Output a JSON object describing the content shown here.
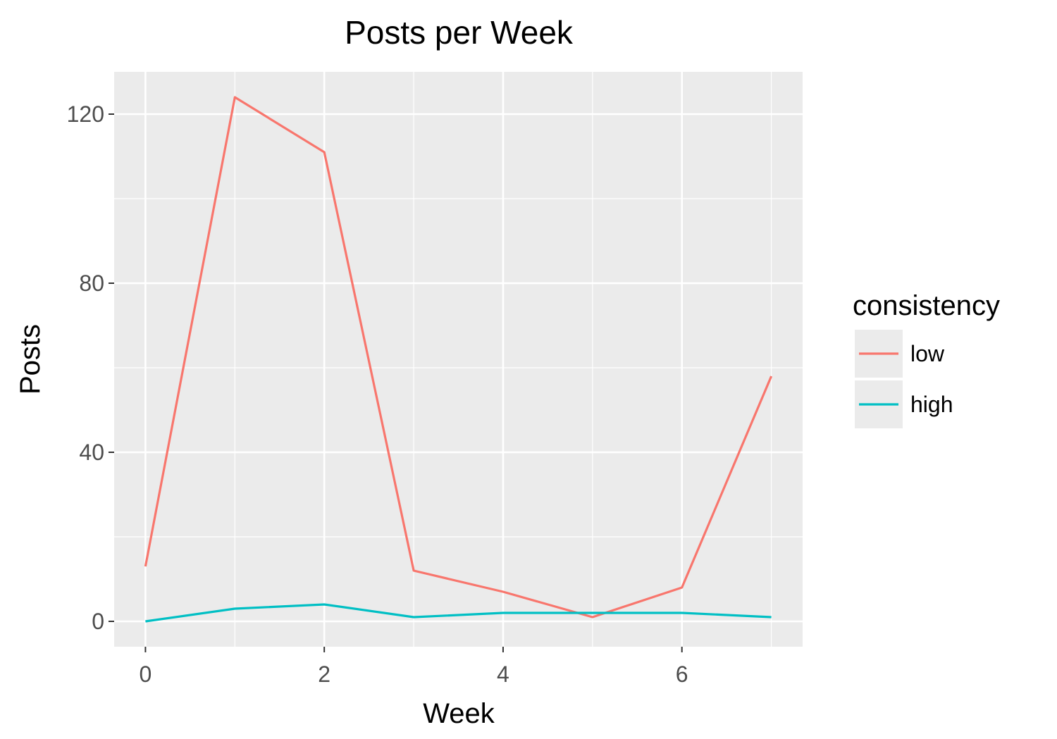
{
  "chart_data": {
    "type": "line",
    "title": "Posts per Week",
    "xlabel": "Week",
    "ylabel": "Posts",
    "x": [
      0,
      1,
      2,
      3,
      4,
      5,
      6,
      7
    ],
    "xlim": [
      -0.35,
      7.35
    ],
    "ylim": [
      -6,
      130
    ],
    "x_ticks": [
      0,
      2,
      4,
      6
    ],
    "x_tick_labels": [
      "0",
      "2",
      "4",
      "6"
    ],
    "y_ticks": [
      0,
      40,
      80,
      120
    ],
    "y_tick_labels": [
      "0",
      "40",
      "80",
      "120"
    ],
    "grid": true,
    "legend": {
      "title": "consistency",
      "position": "right"
    },
    "series": [
      {
        "name": "low",
        "color": "#F8766D",
        "values": [
          13,
          124,
          111,
          12,
          7,
          1,
          8,
          58
        ]
      },
      {
        "name": "high",
        "color": "#00BFC4",
        "values": [
          0,
          3,
          4,
          1,
          2,
          2,
          2,
          1
        ]
      }
    ],
    "panel_background": "#EBEBEB",
    "grid_color": "#FFFFFF"
  }
}
